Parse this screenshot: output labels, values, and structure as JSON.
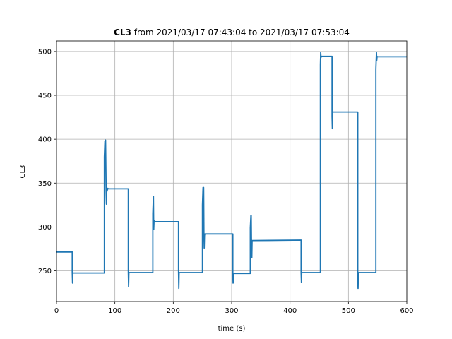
{
  "chart_data": {
    "type": "line",
    "title_bold": "CL3",
    "title_rest": " from 2021/03/17 07:43:04 to 2021/03/17 07:53:04",
    "xlabel": "time (s)",
    "ylabel": "CL3",
    "xlim": [
      0,
      600
    ],
    "ylim": [
      215,
      512
    ],
    "xticks": [
      0,
      100,
      200,
      300,
      400,
      500,
      600
    ],
    "yticks": [
      250,
      300,
      350,
      400,
      450,
      500
    ],
    "grid": true,
    "series": [
      {
        "color": "#1f77b4",
        "x": [
          0,
          27,
          27,
          27.5,
          28,
          82,
          82,
          83,
          84,
          85,
          85.5,
          86,
          88,
          88.5,
          123,
          123,
          123.5,
          124,
          165,
          165,
          166,
          166.5,
          167,
          167.5,
          168,
          209,
          209,
          209.5,
          210,
          250,
          250,
          251,
          252,
          252.5,
          253,
          253.5,
          254,
          302,
          302,
          302.5,
          303,
          332,
          332,
          333,
          333.5,
          334,
          334.5,
          335,
          419,
          419,
          419.5,
          420,
          452,
          452,
          452.5,
          453,
          453.5,
          454,
          472,
          472,
          472.5,
          473,
          516,
          516,
          516.5,
          517,
          547,
          547,
          548,
          548.5,
          549,
          549.5,
          600
        ],
        "y": [
          271.5,
          271.5,
          248,
          236,
          247.5,
          247.5,
          380,
          398,
          399,
          340,
          326,
          340,
          344,
          343.5,
          343.5,
          248,
          232,
          248,
          248,
          315,
          335,
          297,
          306,
          307,
          306,
          306,
          249,
          230,
          248,
          248,
          325,
          345,
          345,
          292,
          276,
          290,
          292,
          292,
          247,
          236,
          247,
          247,
          299,
          313,
          313,
          276,
          265,
          284.5,
          285,
          248,
          237,
          248,
          248,
          485,
          499,
          493,
          494.5,
          494.5,
          494.5,
          426,
          412,
          431,
          431,
          248,
          230,
          248,
          248,
          480,
          499,
          490,
          494.5,
          494,
          494
        ]
      }
    ]
  }
}
